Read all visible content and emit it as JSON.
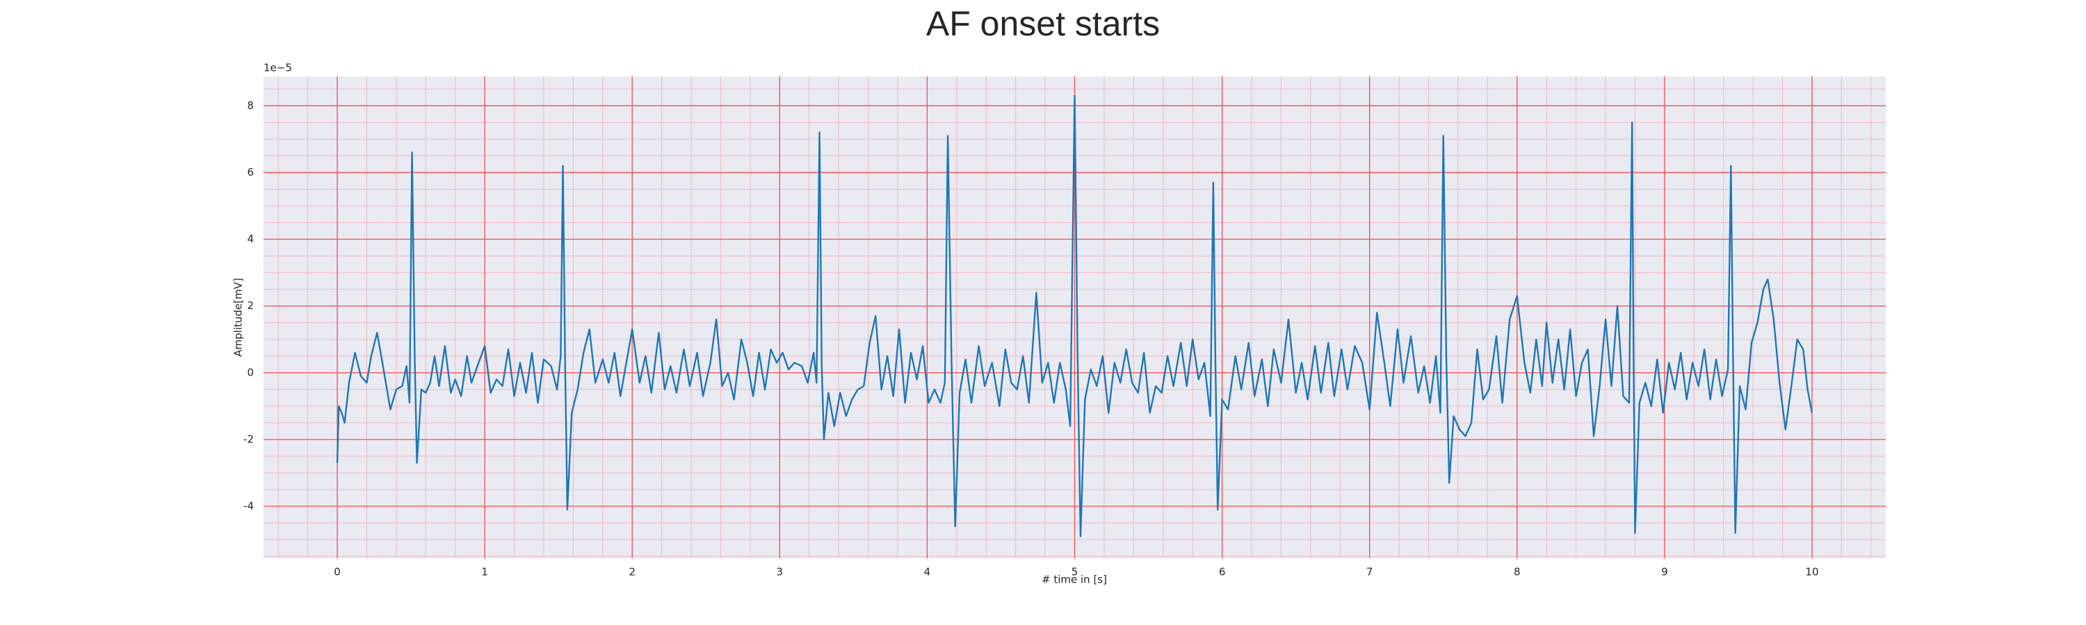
{
  "chart_data": {
    "type": "line",
    "title": "AF onset starts",
    "xlabel": "# time in [s]",
    "ylabel": "Amplitude[mV]",
    "offset_label": "1e−5",
    "color": "#1f77b4",
    "grid": true,
    "minor_grid": {
      "x": 0.2,
      "y": 0.5
    },
    "xlim": [
      -0.5,
      10.5
    ],
    "ylim": [
      -5.56,
      8.88
    ],
    "xticks": [
      0,
      1,
      2,
      3,
      4,
      5,
      6,
      7,
      8,
      9,
      10
    ],
    "yticks": [
      -4,
      -2,
      0,
      2,
      4,
      6,
      8
    ],
    "x": [
      0,
      0.01,
      0.03,
      0.05,
      0.08,
      0.12,
      0.16,
      0.2,
      0.23,
      0.27,
      0.31,
      0.36,
      0.4,
      0.44,
      0.47,
      0.49,
      0.507,
      0.525,
      0.54,
      0.57,
      0.6,
      0.63,
      0.66,
      0.69,
      0.73,
      0.77,
      0.8,
      0.84,
      0.88,
      0.91,
      0.95,
      1.0,
      1.04,
      1.08,
      1.12,
      1.16,
      1.2,
      1.24,
      1.28,
      1.32,
      1.36,
      1.4,
      1.45,
      1.49,
      1.515,
      1.53,
      1.545,
      1.56,
      1.59,
      1.63,
      1.67,
      1.71,
      1.75,
      1.8,
      1.84,
      1.88,
      1.92,
      1.96,
      2.0,
      2.05,
      2.09,
      2.13,
      2.18,
      2.22,
      2.26,
      2.3,
      2.35,
      2.39,
      2.44,
      2.48,
      2.53,
      2.57,
      2.61,
      2.65,
      2.69,
      2.74,
      2.78,
      2.82,
      2.86,
      2.9,
      2.94,
      2.98,
      3.02,
      3.06,
      3.1,
      3.15,
      3.19,
      3.23,
      3.25,
      3.27,
      3.285,
      3.3,
      3.33,
      3.37,
      3.41,
      3.45,
      3.49,
      3.53,
      3.57,
      3.61,
      3.65,
      3.69,
      3.73,
      3.77,
      3.81,
      3.85,
      3.89,
      3.93,
      3.97,
      4.01,
      4.05,
      4.09,
      4.12,
      4.14,
      4.165,
      4.19,
      4.22,
      4.26,
      4.3,
      4.35,
      4.39,
      4.44,
      4.49,
      4.53,
      4.57,
      4.61,
      4.65,
      4.69,
      4.74,
      4.78,
      4.82,
      4.86,
      4.9,
      4.94,
      4.97,
      5.0,
      5.02,
      5.04,
      5.07,
      5.11,
      5.15,
      5.19,
      5.23,
      5.27,
      5.31,
      5.35,
      5.39,
      5.43,
      5.47,
      5.51,
      5.55,
      5.59,
      5.63,
      5.67,
      5.72,
      5.76,
      5.8,
      5.84,
      5.88,
      5.92,
      5.94,
      5.955,
      5.97,
      6.0,
      6.04,
      6.09,
      6.13,
      6.18,
      6.22,
      6.27,
      6.31,
      6.35,
      6.4,
      6.45,
      6.5,
      6.54,
      6.58,
      6.63,
      6.67,
      6.72,
      6.76,
      6.81,
      6.85,
      6.9,
      6.95,
      7.0,
      7.05,
      7.1,
      7.14,
      7.19,
      7.23,
      7.28,
      7.33,
      7.37,
      7.41,
      7.45,
      7.48,
      7.5,
      7.52,
      7.54,
      7.57,
      7.61,
      7.65,
      7.69,
      7.73,
      7.77,
      7.81,
      7.86,
      7.9,
      7.95,
      8.0,
      8.05,
      8.09,
      8.13,
      8.17,
      8.2,
      8.24,
      8.28,
      8.32,
      8.36,
      8.4,
      8.44,
      8.48,
      8.52,
      8.56,
      8.6,
      8.64,
      8.68,
      8.72,
      8.76,
      8.78,
      8.79,
      8.8,
      8.83,
      8.87,
      8.91,
      8.95,
      8.99,
      9.03,
      9.07,
      9.11,
      9.15,
      9.19,
      9.23,
      9.27,
      9.31,
      9.35,
      9.39,
      9.43,
      9.45,
      9.465,
      9.48,
      9.51,
      9.55,
      9.59,
      9.63,
      9.67,
      9.7,
      9.74,
      9.78,
      9.82,
      9.86,
      9.9,
      9.94,
      9.97,
      10.0
    ],
    "values": [
      -2.7,
      -1.0,
      -1.2,
      -1.5,
      -0.3,
      0.6,
      -0.1,
      -0.3,
      0.5,
      1.2,
      0.2,
      -1.1,
      -0.5,
      -0.4,
      0.2,
      -0.9,
      6.6,
      0.5,
      -2.7,
      -0.5,
      -0.6,
      -0.3,
      0.5,
      -0.4,
      0.8,
      -0.6,
      -0.2,
      -0.7,
      0.5,
      -0.3,
      0.2,
      0.8,
      -0.6,
      -0.2,
      -0.4,
      0.7,
      -0.7,
      0.3,
      -0.6,
      0.6,
      -0.9,
      0.4,
      0.2,
      -0.5,
      0.5,
      6.2,
      0.3,
      -4.1,
      -1.2,
      -0.5,
      0.6,
      1.3,
      -0.3,
      0.4,
      -0.3,
      0.6,
      -0.7,
      0.3,
      1.3,
      -0.3,
      0.5,
      -0.6,
      1.2,
      -0.5,
      0.2,
      -0.6,
      0.7,
      -0.4,
      0.6,
      -0.7,
      0.3,
      1.6,
      -0.4,
      0.0,
      -0.8,
      1.0,
      0.3,
      -0.7,
      0.6,
      -0.5,
      0.7,
      0.3,
      0.6,
      0.1,
      0.3,
      0.2,
      -0.3,
      0.6,
      -0.3,
      7.2,
      0.2,
      -2.0,
      -0.6,
      -1.6,
      -0.6,
      -1.3,
      -0.8,
      -0.5,
      -0.4,
      0.9,
      1.7,
      -0.5,
      0.5,
      -0.7,
      1.3,
      -0.9,
      0.6,
      -0.2,
      0.8,
      -0.9,
      -0.5,
      -0.9,
      -0.3,
      7.1,
      0.4,
      -4.6,
      -0.6,
      0.4,
      -0.9,
      0.8,
      -0.4,
      0.3,
      -1.0,
      0.7,
      -0.3,
      -0.5,
      0.5,
      -0.9,
      2.4,
      -0.3,
      0.3,
      -0.9,
      0.3,
      -0.5,
      -1.6,
      8.3,
      0.5,
      -4.9,
      -0.8,
      0.1,
      -0.4,
      0.5,
      -1.2,
      0.3,
      -0.3,
      0.7,
      -0.3,
      -0.6,
      0.6,
      -1.2,
      -0.4,
      -0.6,
      0.5,
      -0.4,
      0.9,
      -0.4,
      1.0,
      -0.2,
      0.3,
      -1.3,
      5.7,
      0.2,
      -4.1,
      -0.8,
      -1.1,
      0.5,
      -0.5,
      0.9,
      -0.7,
      0.4,
      -1.0,
      0.7,
      -0.3,
      1.6,
      -0.6,
      0.3,
      -0.8,
      0.8,
      -0.6,
      0.9,
      -0.7,
      0.7,
      -0.5,
      0.8,
      0.3,
      -1.1,
      1.8,
      0.3,
      -1.0,
      1.3,
      -0.3,
      1.1,
      -0.6,
      0.2,
      -0.9,
      0.5,
      -1.2,
      7.1,
      0.5,
      -3.3,
      -1.3,
      -1.7,
      -1.9,
      -1.5,
      0.7,
      -0.8,
      -0.5,
      1.1,
      -0.9,
      1.6,
      2.3,
      0.3,
      -0.6,
      1.0,
      -0.4,
      1.5,
      -0.3,
      1.0,
      -0.5,
      1.3,
      -0.7,
      0.3,
      0.7,
      -1.9,
      -0.4,
      1.6,
      -0.4,
      2.0,
      -0.7,
      -0.9,
      7.5,
      0.5,
      -4.8,
      -0.9,
      -0.3,
      -1.0,
      0.4,
      -1.2,
      0.3,
      -0.5,
      0.6,
      -0.8,
      0.3,
      -0.4,
      0.7,
      -0.8,
      0.4,
      -0.7,
      0.1,
      6.2,
      0.3,
      -4.8,
      -0.4,
      -1.1,
      0.9,
      1.5,
      2.5,
      2.8,
      1.6,
      -0.3,
      -1.7,
      -0.4,
      1.0,
      0.7,
      -0.5,
      -1.2
    ]
  }
}
